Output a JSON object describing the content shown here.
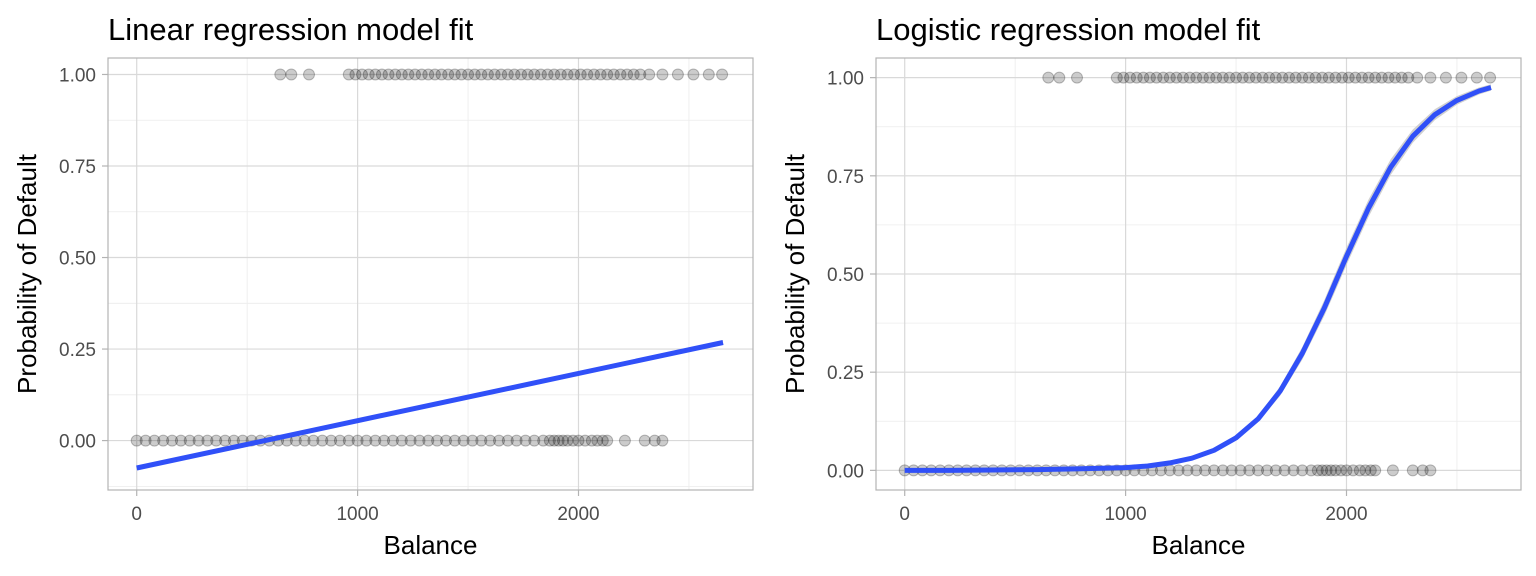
{
  "colors": {
    "fit_line": "#3050f8",
    "confidence_band": "#c8c8c8",
    "points": "#000000",
    "grid_major": "#d9d9d9",
    "grid_minor": "#ececec",
    "panel_border": "#b3b3b3"
  },
  "chart_data": [
    {
      "type": "scatter",
      "title": "Linear regression model fit",
      "xlabel": "Balance",
      "ylabel": "Probability of Default",
      "xlim": [
        -130,
        2790
      ],
      "ylim": [
        -0.135,
        1.045
      ],
      "xticks": [
        0,
        1000,
        2000
      ],
      "xtick_labels": [
        "0",
        "1000",
        "2000"
      ],
      "yticks": [
        0,
        0.25,
        0.5,
        0.75,
        1
      ],
      "ytick_labels": [
        "0.00",
        "0.25",
        "0.50",
        "0.75",
        "1.00"
      ],
      "grid": true,
      "point_alpha": 0.2,
      "series": [
        {
          "role": "observations",
          "groups": [
            {
              "y": 0,
              "x": [
                0,
                40,
                80,
                120,
                160,
                200,
                240,
                280,
                320,
                360,
                400,
                440,
                480,
                520,
                560,
                600,
                640,
                680,
                720,
                760,
                800,
                840,
                880,
                920,
                960,
                1000,
                1040,
                1080,
                1120,
                1160,
                1200,
                1240,
                1280,
                1320,
                1360,
                1400,
                1440,
                1480,
                1520,
                1560,
                1600,
                1640,
                1680,
                1720,
                1760,
                1800,
                1840,
                1870,
                1890,
                1910,
                1930,
                1950,
                1975,
                2000,
                2030,
                2060,
                2085,
                2110,
                2130,
                2210,
                2300,
                2345,
                2380
              ]
            },
            {
              "y": 1,
              "x": [
                650,
                700,
                780,
                960,
                990,
                1020,
                1050,
                1080,
                1110,
                1140,
                1170,
                1200,
                1230,
                1260,
                1290,
                1320,
                1350,
                1380,
                1410,
                1440,
                1470,
                1500,
                1530,
                1560,
                1590,
                1620,
                1650,
                1680,
                1710,
                1740,
                1770,
                1800,
                1830,
                1860,
                1890,
                1920,
                1950,
                1980,
                2010,
                2040,
                2070,
                2100,
                2130,
                2160,
                2190,
                2220,
                2250,
                2280,
                2320,
                2380,
                2450,
                2520,
                2590,
                2650
              ]
            }
          ]
        },
        {
          "role": "fit",
          "model": "linear",
          "x": [
            0,
            2654
          ],
          "y": [
            -0.075,
            0.268
          ],
          "se_halfwidth": 0.006
        }
      ]
    },
    {
      "type": "scatter",
      "title": "Logistic regression model fit",
      "xlabel": "Balance",
      "ylabel": "Probability of Default",
      "xlim": [
        -130,
        2790
      ],
      "ylim": [
        -0.05,
        1.05
      ],
      "xticks": [
        0,
        1000,
        2000
      ],
      "xtick_labels": [
        "0",
        "1000",
        "2000"
      ],
      "yticks": [
        0,
        0.25,
        0.5,
        0.75,
        1
      ],
      "ytick_labels": [
        "0.00",
        "0.25",
        "0.50",
        "0.75",
        "1.00"
      ],
      "grid": true,
      "point_alpha": 0.2,
      "series": [
        {
          "role": "observations",
          "groups": [
            {
              "y": 0,
              "x": [
                0,
                40,
                80,
                120,
                160,
                200,
                240,
                280,
                320,
                360,
                400,
                440,
                480,
                520,
                560,
                600,
                640,
                680,
                720,
                760,
                800,
                840,
                880,
                920,
                960,
                1000,
                1040,
                1080,
                1120,
                1160,
                1200,
                1240,
                1280,
                1320,
                1360,
                1400,
                1440,
                1480,
                1520,
                1560,
                1600,
                1640,
                1680,
                1720,
                1760,
                1800,
                1840,
                1870,
                1890,
                1910,
                1930,
                1950,
                1975,
                2000,
                2030,
                2060,
                2085,
                2110,
                2130,
                2210,
                2300,
                2345,
                2380
              ]
            },
            {
              "y": 1,
              "x": [
                650,
                700,
                780,
                960,
                990,
                1020,
                1050,
                1080,
                1110,
                1140,
                1170,
                1200,
                1230,
                1260,
                1290,
                1320,
                1350,
                1380,
                1410,
                1440,
                1470,
                1500,
                1530,
                1560,
                1590,
                1620,
                1650,
                1680,
                1710,
                1740,
                1770,
                1800,
                1830,
                1860,
                1890,
                1920,
                1950,
                1980,
                2010,
                2040,
                2070,
                2100,
                2130,
                2160,
                2190,
                2220,
                2250,
                2280,
                2320,
                2380,
                2450,
                2520,
                2590,
                2650
              ]
            }
          ]
        },
        {
          "role": "fit",
          "model": "logistic",
          "x": [
            0,
            200,
            400,
            600,
            800,
            1000,
            1100,
            1200,
            1300,
            1400,
            1500,
            1600,
            1700,
            1800,
            1900,
            1950,
            2000,
            2100,
            2200,
            2300,
            2400,
            2500,
            2600,
            2654
          ],
          "y": [
            0.0,
            0.0,
            0.001,
            0.002,
            0.004,
            0.007,
            0.011,
            0.019,
            0.031,
            0.051,
            0.083,
            0.131,
            0.202,
            0.298,
            0.414,
            0.48,
            0.545,
            0.668,
            0.772,
            0.851,
            0.906,
            0.942,
            0.966,
            0.975
          ],
          "se_halfwidth": [
            0,
            0,
            0,
            0,
            0,
            0.001,
            0.001,
            0.002,
            0.003,
            0.004,
            0.006,
            0.008,
            0.012,
            0.016,
            0.02,
            0.022,
            0.022,
            0.022,
            0.02,
            0.017,
            0.014,
            0.011,
            0.009,
            0.008
          ]
        }
      ]
    }
  ]
}
